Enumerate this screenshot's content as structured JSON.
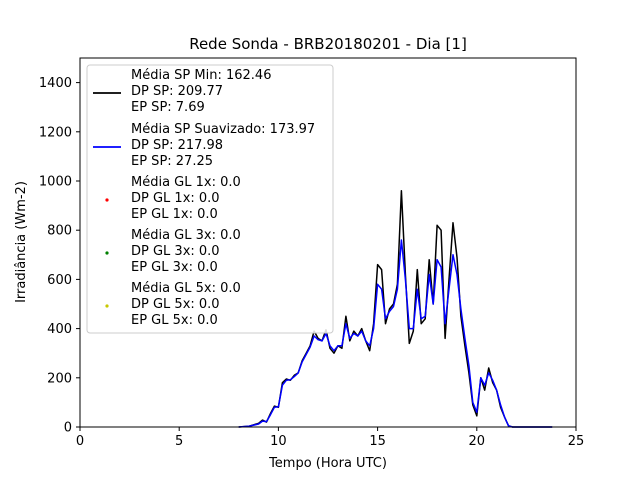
{
  "chart_data": {
    "type": "line",
    "title": "Rede Sonda - BRB20180201 - Dia [1]",
    "xlabel": "Tempo (Hora UTC)",
    "ylabel": "Irradiância (Wm-2)",
    "xlim": [
      0,
      25
    ],
    "ylim": [
      0,
      1500
    ],
    "xticks": [
      0,
      5,
      10,
      15,
      20,
      25
    ],
    "yticks": [
      0,
      200,
      400,
      600,
      800,
      1000,
      1200,
      1400
    ],
    "legend_position": "upper-left",
    "series": [
      {
        "name": "Média SP Min",
        "color": "#000000",
        "legend_lines": [
          "Média SP Min: 162.46",
          "DP SP: 209.77",
          "EP SP: 7.69"
        ],
        "x": [
          8.0,
          8.5,
          9.0,
          9.2,
          9.4,
          9.6,
          9.8,
          10.0,
          10.2,
          10.4,
          10.6,
          10.8,
          11.0,
          11.2,
          11.4,
          11.6,
          11.8,
          12.0,
          12.2,
          12.4,
          12.6,
          12.8,
          13.0,
          13.2,
          13.4,
          13.6,
          13.8,
          14.0,
          14.2,
          14.4,
          14.6,
          14.8,
          15.0,
          15.2,
          15.4,
          15.6,
          15.8,
          16.0,
          16.2,
          16.4,
          16.6,
          16.8,
          17.0,
          17.2,
          17.4,
          17.6,
          17.8,
          18.0,
          18.2,
          18.4,
          18.6,
          18.8,
          19.0,
          19.2,
          19.4,
          19.6,
          19.8,
          20.0,
          20.2,
          20.4,
          20.6,
          20.8,
          21.0,
          21.2,
          21.4,
          21.6,
          21.8,
          22.0,
          23.0,
          23.8
        ],
        "y": [
          0,
          3,
          15,
          28,
          20,
          55,
          85,
          80,
          180,
          195,
          190,
          210,
          220,
          270,
          300,
          330,
          390,
          360,
          350,
          395,
          320,
          300,
          330,
          320,
          450,
          350,
          390,
          370,
          400,
          350,
          310,
          420,
          660,
          640,
          420,
          480,
          500,
          580,
          960,
          620,
          340,
          390,
          640,
          420,
          440,
          680,
          500,
          820,
          800,
          360,
          600,
          830,
          690,
          450,
          330,
          220,
          90,
          45,
          200,
          150,
          240,
          180,
          150,
          80,
          40,
          5,
          0,
          0,
          0,
          0
        ]
      },
      {
        "name": "Média SP Suavizado",
        "color": "#0000ff",
        "legend_lines": [
          "Média SP Suavizado: 173.97",
          "DP SP: 217.98",
          "EP SP: 27.25"
        ],
        "x": [
          8.0,
          8.5,
          9.0,
          9.2,
          9.4,
          9.6,
          9.8,
          10.0,
          10.2,
          10.4,
          10.6,
          10.8,
          11.0,
          11.2,
          11.4,
          11.6,
          11.8,
          12.0,
          12.2,
          12.4,
          12.6,
          12.8,
          13.0,
          13.2,
          13.4,
          13.6,
          13.8,
          14.0,
          14.2,
          14.4,
          14.6,
          14.8,
          15.0,
          15.2,
          15.4,
          15.6,
          15.8,
          16.0,
          16.2,
          16.4,
          16.6,
          16.8,
          17.0,
          17.2,
          17.4,
          17.6,
          17.8,
          18.0,
          18.2,
          18.4,
          18.6,
          18.8,
          19.0,
          19.2,
          19.4,
          19.6,
          19.8,
          20.0,
          20.2,
          20.4,
          20.6,
          20.8,
          21.0,
          21.2,
          21.4,
          21.6,
          21.8,
          22.0,
          23.0,
          23.8
        ],
        "y": [
          0,
          3,
          12,
          24,
          22,
          50,
          80,
          82,
          170,
          190,
          192,
          205,
          220,
          265,
          295,
          325,
          370,
          355,
          350,
          380,
          330,
          310,
          330,
          330,
          420,
          360,
          380,
          370,
          390,
          350,
          330,
          400,
          580,
          560,
          440,
          470,
          490,
          560,
          760,
          600,
          400,
          400,
          560,
          440,
          450,
          620,
          500,
          680,
          650,
          420,
          560,
          700,
          620,
          480,
          360,
          250,
          100,
          60,
          200,
          170,
          220,
          190,
          150,
          90,
          40,
          5,
          0,
          0,
          0,
          0
        ]
      },
      {
        "name": "Média GL 1x",
        "color": "#ff0000",
        "legend_lines": [
          "Média GL 1x: 0.0",
          "DP GL 1x: 0.0",
          "EP GL 1x: 0.0"
        ],
        "x": [],
        "y": []
      },
      {
        "name": "Média GL 3x",
        "color": "#008000",
        "legend_lines": [
          "Média GL 3x: 0.0",
          "DP GL 3x: 0.0",
          "EP GL 3x: 0.0"
        ],
        "x": [],
        "y": []
      },
      {
        "name": "Média GL 5x",
        "color": "#c8c800",
        "legend_lines": [
          "Média GL 5x: 0.0",
          "DP GL 5x: 0.0",
          "EP GL 5x: 0.0"
        ],
        "x": [],
        "y": []
      }
    ]
  }
}
